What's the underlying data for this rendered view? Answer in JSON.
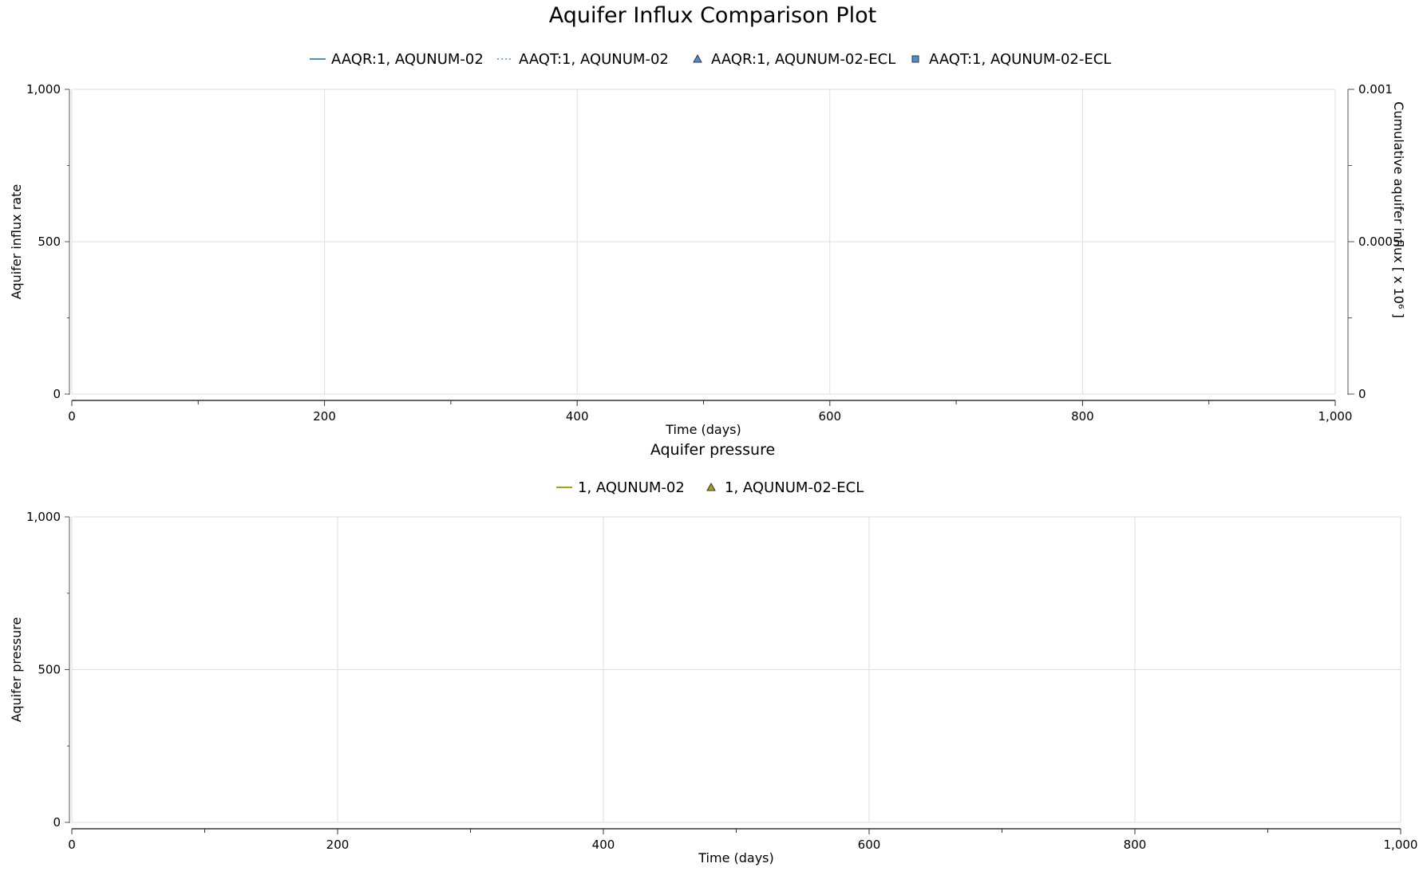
{
  "page": {
    "title": "Aquifer Influx Comparison Plot"
  },
  "chart_data": [
    {
      "type": "line",
      "title": "",
      "xlabel": "Time (days)",
      "ylabel": "Aquifer influx rate",
      "y2label": "Cumulative aquifer influx [ x 10⁶ ]",
      "xlim": [
        0,
        1000
      ],
      "ylim": [
        0,
        1000
      ],
      "y2lim": [
        0,
        0.001
      ],
      "xticks": [
        0,
        200,
        400,
        600,
        800,
        1000
      ],
      "xtick_labels": [
        "0",
        "200",
        "400",
        "600",
        "800",
        "1,000"
      ],
      "yticks": [
        0,
        500,
        1000
      ],
      "ytick_labels": [
        "0",
        "500",
        "1,000"
      ],
      "y2ticks": [
        0,
        0.0005,
        0.001
      ],
      "y2tick_labels": [
        "0",
        "0.0005",
        "0.001"
      ],
      "grid": true,
      "legend_position": "top-center",
      "series": [
        {
          "name": "AAQR:1, AQUNUM-02",
          "style": "solid-line",
          "color": "#4e8fd3",
          "axis": "left",
          "x": [],
          "y": []
        },
        {
          "name": "AAQT:1, AQUNUM-02",
          "style": "dotted-line",
          "color": "#4e8fd3",
          "axis": "right",
          "x": [],
          "y": []
        },
        {
          "name": "AAQR:1, AQUNUM-02-ECL",
          "style": "triangle-marker",
          "color": "#4e8fd3",
          "axis": "left",
          "x": [],
          "y": []
        },
        {
          "name": "AAQT:1, AQUNUM-02-ECL",
          "style": "square-marker",
          "color": "#4e8fd3",
          "axis": "right",
          "x": [],
          "y": []
        }
      ]
    },
    {
      "type": "line",
      "title": "Aquifer pressure",
      "xlabel": "Time (days)",
      "ylabel": "Aquifer pressure",
      "xlim": [
        0,
        1000
      ],
      "ylim": [
        0,
        1000
      ],
      "xticks": [
        0,
        200,
        400,
        600,
        800,
        1000
      ],
      "xtick_labels": [
        "0",
        "200",
        "400",
        "600",
        "800",
        "1,000"
      ],
      "yticks": [
        0,
        500,
        1000
      ],
      "ytick_labels": [
        "0",
        "500",
        "1,000"
      ],
      "grid": true,
      "legend_position": "top-center",
      "series": [
        {
          "name": "1, AQUNUM-02",
          "style": "solid-line",
          "color": "#a5a01a",
          "axis": "left",
          "x": [],
          "y": []
        },
        {
          "name": "1, AQUNUM-02-ECL",
          "style": "triangle-marker",
          "color": "#a5a01a",
          "axis": "left",
          "x": [],
          "y": []
        }
      ]
    }
  ]
}
